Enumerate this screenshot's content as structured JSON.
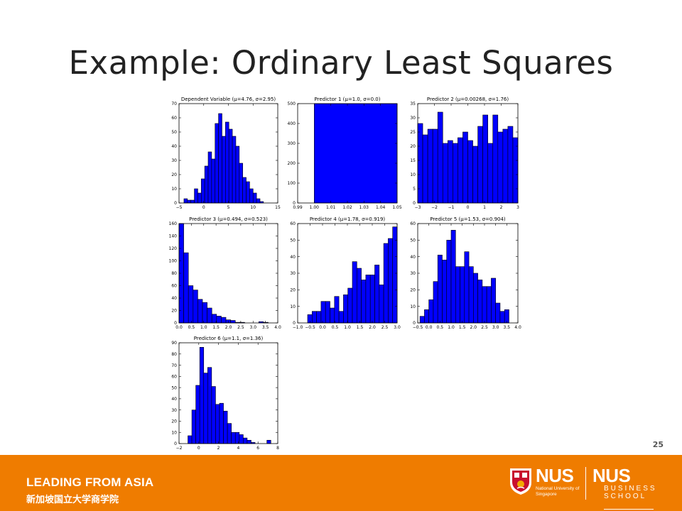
{
  "slide": {
    "title": "Example: Ordinary Least Squares",
    "page_number": "25"
  },
  "footer": {
    "tagline": "LEADING FROM ASIA",
    "tagline_cn": "新加坡国立大学商学院",
    "logo_nus": "NUS",
    "logo_nus_full": "National University of Singapore",
    "logo_business_abbrev": "NUS",
    "logo_business_line1": "BUSINESS",
    "logo_business_line2": "SCHOOL",
    "background_color": "#ef7c00",
    "crest_icon": "nus-crest-icon"
  },
  "colors": {
    "bar_fill": "#0000ff",
    "bar_stroke": "#000000"
  },
  "chart_data": [
    {
      "type": "bar",
      "title": "Dependent Variable (μ=4.76, σ=2.95)",
      "xlim": [
        -5,
        15
      ],
      "ylim": [
        0,
        70
      ],
      "xticks": [
        -5,
        0,
        5,
        10,
        15
      ],
      "yticks": [
        0,
        10,
        20,
        30,
        40,
        50,
        60,
        70
      ],
      "bin_edges": [
        -4,
        -3.3,
        -2.6,
        -1.9,
        -1.2,
        -0.5,
        0.2,
        0.9,
        1.6,
        2.3,
        3.0,
        3.7,
        4.4,
        5.1,
        5.8,
        6.5,
        7.2,
        7.9,
        8.6,
        9.3,
        10.0,
        10.7,
        11.4,
        12.1
      ],
      "values": [
        3,
        2,
        2,
        10,
        7,
        17,
        26,
        36,
        31,
        56,
        63,
        47,
        57,
        52,
        47,
        40,
        28,
        18,
        15,
        10,
        7,
        3,
        1
      ]
    },
    {
      "type": "bar",
      "title": "Predictor 1 (μ=1.0, σ=0.0)",
      "xlim": [
        0.99,
        1.05
      ],
      "ylim": [
        0,
        500
      ],
      "xticks": [
        0.99,
        1.0,
        1.01,
        1.02,
        1.03,
        1.04,
        1.05
      ],
      "yticks": [
        0,
        100,
        200,
        300,
        400,
        500
      ],
      "xtick_labels": [
        "0.99",
        "1.00",
        "1.01",
        "1.02",
        "1.03",
        "1.04",
        "1.05"
      ],
      "bin_edges": [
        1.0,
        1.05
      ],
      "values": [
        500
      ]
    },
    {
      "type": "bar",
      "title": "Predictor 2 (μ=0.00268, σ=1.76)",
      "xlim": [
        -3,
        3
      ],
      "ylim": [
        0,
        35
      ],
      "xticks": [
        -3,
        -2,
        -1,
        0,
        1,
        2,
        3
      ],
      "yticks": [
        0,
        5,
        10,
        15,
        20,
        25,
        30,
        35
      ],
      "xtick_labels": [
        "−3",
        "−2",
        "−1",
        "0",
        "1",
        "2",
        "3"
      ],
      "bin_edges": [
        -3,
        -2.7,
        -2.4,
        -2.1,
        -1.8,
        -1.5,
        -1.2,
        -0.9,
        -0.6,
        -0.3,
        0,
        0.3,
        0.6,
        0.9,
        1.2,
        1.5,
        1.8,
        2.1,
        2.4,
        2.7,
        3.0
      ],
      "values": [
        28,
        24,
        26,
        26,
        32,
        21,
        22,
        21,
        23,
        25,
        22,
        20,
        27,
        31,
        21,
        31,
        25,
        26,
        27,
        23
      ]
    },
    {
      "type": "bar",
      "title": "Predictor 3 (μ=0.494, σ=0.523)",
      "xlim": [
        0,
        4
      ],
      "ylim": [
        0,
        160
      ],
      "xticks": [
        0,
        0.5,
        1,
        1.5,
        2,
        2.5,
        3,
        3.5,
        4
      ],
      "yticks": [
        0,
        20,
        40,
        60,
        80,
        100,
        120,
        140,
        160
      ],
      "xtick_labels": [
        "0.0",
        "0.5",
        "1.0",
        "1.5",
        "2.0",
        "2.5",
        "3.0",
        "3.5",
        "4.0"
      ],
      "bin_edges": [
        0,
        0.19,
        0.38,
        0.57,
        0.76,
        0.95,
        1.14,
        1.33,
        1.52,
        1.71,
        1.9,
        2.09,
        2.28,
        2.47,
        2.66,
        2.85,
        3.04,
        3.23,
        3.42,
        3.61,
        3.8
      ],
      "values": [
        160,
        113,
        60,
        53,
        38,
        33,
        24,
        14,
        11,
        9,
        5,
        4,
        1,
        1,
        0,
        0,
        0,
        2,
        1,
        0
      ]
    },
    {
      "type": "bar",
      "title": "Predictor 4 (μ=1.78, σ=0.919)",
      "xlim": [
        -1.0,
        3.0
      ],
      "ylim": [
        0,
        60
      ],
      "xticks": [
        -1.0,
        -0.5,
        0,
        0.5,
        1.0,
        1.5,
        2.0,
        2.5,
        3.0
      ],
      "yticks": [
        0,
        10,
        20,
        30,
        40,
        50,
        60
      ],
      "xtick_labels": [
        "−1.0",
        "−0.5",
        "0.0",
        "0.5",
        "1.0",
        "1.5",
        "2.0",
        "2.5",
        "3.0"
      ],
      "bin_edges": [
        -0.6,
        -0.42,
        -0.24,
        -0.06,
        0.12,
        0.3,
        0.48,
        0.66,
        0.84,
        1.02,
        1.2,
        1.38,
        1.56,
        1.74,
        1.92,
        2.1,
        2.28,
        2.46,
        2.64,
        2.82,
        3.0
      ],
      "values": [
        5,
        7,
        7,
        13,
        13,
        9,
        16,
        7,
        17,
        21,
        37,
        33,
        26,
        29,
        29,
        35,
        23,
        48,
        51,
        58
      ]
    },
    {
      "type": "bar",
      "title": "Predictor 5 (μ=1.53, σ=0.904)",
      "xlim": [
        -0.5,
        4.0
      ],
      "ylim": [
        0,
        60
      ],
      "xticks": [
        -0.5,
        0,
        0.5,
        1.0,
        1.5,
        2.0,
        2.5,
        3.0,
        3.5,
        4.0
      ],
      "yticks": [
        0,
        10,
        20,
        30,
        40,
        50,
        60
      ],
      "xtick_labels": [
        "−0.5",
        "0.0",
        "0.5",
        "1.0",
        "1.5",
        "2.0",
        "2.5",
        "3.0",
        "3.5",
        "4.0"
      ],
      "bin_edges": [
        -0.4,
        -0.2,
        0,
        0.2,
        0.4,
        0.6,
        0.8,
        1.0,
        1.2,
        1.4,
        1.6,
        1.8,
        2.0,
        2.2,
        2.4,
        2.6,
        2.8,
        3.0,
        3.2,
        3.4,
        3.6
      ],
      "values": [
        4,
        8,
        14,
        25,
        41,
        38,
        50,
        56,
        34,
        34,
        43,
        34,
        30,
        26,
        22,
        22,
        27,
        12,
        7,
        8
      ]
    },
    {
      "type": "bar",
      "title": "Predictor 6 (μ=1.1, σ=1.36)",
      "xlim": [
        -2,
        8
      ],
      "ylim": [
        0,
        90
      ],
      "xticks": [
        -2,
        0,
        2,
        4,
        6,
        8
      ],
      "yticks": [
        0,
        10,
        20,
        30,
        40,
        50,
        60,
        70,
        80,
        90
      ],
      "xtick_labels": [
        "−2",
        "0",
        "2",
        "4",
        "6",
        "8"
      ],
      "bin_edges": [
        -1.1,
        -0.7,
        -0.3,
        0.1,
        0.5,
        0.9,
        1.3,
        1.7,
        2.1,
        2.5,
        2.9,
        3.3,
        3.7,
        4.1,
        4.5,
        4.9,
        5.3,
        5.7,
        6.1,
        6.5,
        6.9,
        7.3
      ],
      "values": [
        7,
        30,
        52,
        86,
        63,
        68,
        51,
        35,
        36,
        29,
        18,
        10,
        10,
        8,
        5,
        3,
        1,
        0,
        0,
        0,
        3
      ]
    }
  ]
}
